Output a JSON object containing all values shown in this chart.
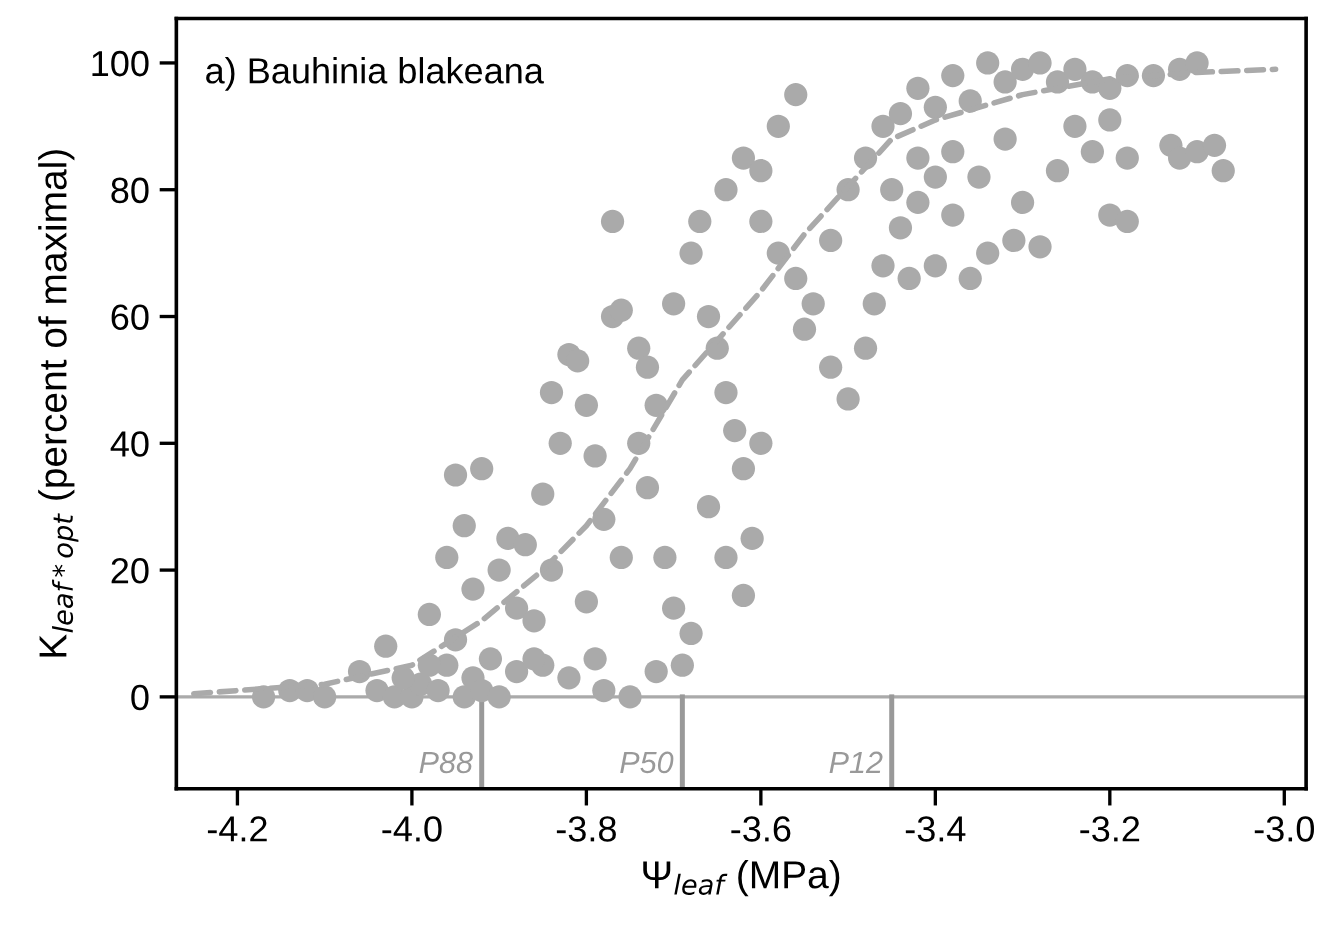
{
  "chart_data": {
    "type": "scatter",
    "title": "a) Bauhinia blakeana",
    "xlabel": "Ψ$_{leaf}$ (MPa)",
    "ylabel": "K$_{leaf*opt}$ (percent of maximal)",
    "xlim": [
      -4.27,
      -2.975
    ],
    "ylim": [
      -14.5,
      107
    ],
    "xticks": [
      -4.2,
      {
        "value": -4.0,
        "label": "-4.0"
      },
      -3.8,
      -3.6,
      -3.4,
      -3.2,
      {
        "value": -3.0,
        "label": "-3.0"
      }
    ],
    "yticks": [
      0,
      20,
      40,
      60,
      80,
      100
    ],
    "grid": false,
    "legend": false,
    "marker": "circle",
    "ref_lines": [
      {
        "axis": "y",
        "value": 0,
        "color": "#aaaaaa"
      },
      {
        "axis": "x",
        "value": -3.92,
        "label": "P88",
        "color": "#999999"
      },
      {
        "axis": "x",
        "value": -3.69,
        "label": "P50",
        "color": "#999999"
      },
      {
        "axis": "x",
        "value": -3.45,
        "label": "P12",
        "color": "#999999"
      }
    ],
    "series": [
      {
        "color": "#aaaaaa",
        "x": [
          -4.17,
          -4.14,
          -4.12,
          -4.1,
          -4.06,
          -4.04,
          -4.03,
          -4.02,
          -4.0,
          -3.99,
          -3.98,
          -3.97,
          -3.96,
          -3.95,
          -3.94,
          -3.93,
          -3.92,
          -3.91,
          -3.9,
          -3.98,
          -4.01,
          -3.96,
          -3.95,
          -3.94,
          -3.92,
          -3.93,
          -3.9,
          -3.89,
          -3.88,
          -3.87,
          -3.86,
          -3.85,
          -3.84,
          -3.83,
          -3.82,
          -3.81,
          -3.8,
          -3.79,
          -3.78,
          -3.77,
          -3.77,
          -3.76,
          -3.79,
          -3.85,
          -3.88,
          -3.82,
          -3.78,
          -3.75,
          -3.8,
          -3.84,
          -3.86,
          -3.76,
          -3.74,
          -3.73,
          -3.72,
          -3.74,
          -3.73,
          -3.71,
          -3.7,
          -3.69,
          -3.72,
          -3.7,
          -3.68,
          -3.67,
          -3.66,
          -3.65,
          -3.64,
          -3.63,
          -3.62,
          -3.66,
          -3.64,
          -3.62,
          -3.68,
          -3.6,
          -3.61,
          -3.64,
          -3.62,
          -3.6,
          -3.58,
          -3.56,
          -3.6,
          -3.58,
          -3.56,
          -3.54,
          -3.55,
          -3.52,
          -3.5,
          -3.48,
          -3.46,
          -3.52,
          -3.5,
          -3.48,
          -3.47,
          -3.46,
          -3.44,
          -3.42,
          -3.4,
          -3.43,
          -3.4,
          -3.44,
          -3.42,
          -3.4,
          -3.38,
          -3.36,
          -3.34,
          -3.32,
          -3.3,
          -3.28,
          -3.26,
          -3.24,
          -3.22,
          -3.2,
          -3.18,
          -3.15,
          -3.12,
          -3.1,
          -3.38,
          -3.35,
          -3.32,
          -3.3,
          -3.28,
          -3.31,
          -3.26,
          -3.24,
          -3.22,
          -3.2,
          -3.18,
          -3.2,
          -3.18,
          -3.13,
          -3.12,
          -3.1,
          -3.08,
          -3.07,
          -3.36,
          -3.34,
          -3.38,
          -3.42,
          -3.45
        ],
        "values": [
          0,
          1,
          1,
          0,
          4,
          1,
          8,
          0,
          0,
          2,
          13,
          1,
          5,
          9,
          0,
          3,
          1,
          6,
          0,
          5,
          3,
          22,
          35,
          27,
          36,
          17,
          20,
          25,
          14,
          24,
          12,
          32,
          48,
          40,
          54,
          53,
          46,
          38,
          28,
          75,
          60,
          22,
          6,
          5,
          4,
          3,
          1,
          0,
          15,
          20,
          6,
          61,
          55,
          52,
          46,
          40,
          33,
          22,
          14,
          5,
          4,
          62,
          70,
          75,
          60,
          55,
          48,
          42,
          36,
          30,
          22,
          16,
          10,
          40,
          25,
          80,
          85,
          83,
          90,
          95,
          75,
          70,
          66,
          62,
          58,
          72,
          80,
          85,
          90,
          52,
          47,
          55,
          62,
          68,
          74,
          78,
          82,
          66,
          68,
          92,
          96,
          93,
          98,
          94,
          100,
          97,
          99,
          100,
          97,
          99,
          97,
          96,
          98,
          98,
          99,
          100,
          86,
          82,
          88,
          78,
          71,
          72,
          83,
          90,
          86,
          91,
          85,
          76,
          75,
          87,
          85,
          86,
          87,
          83,
          66,
          70,
          76,
          85,
          80
        ]
      },
      {
        "type": "line",
        "color": "#aaaaaa",
        "line_style": "dashed",
        "marker": "none",
        "x": [
          -4.25,
          -4.2,
          -4.1,
          -4.0,
          -3.92,
          -3.85,
          -3.8,
          -3.75,
          -3.69,
          -3.6,
          -3.55,
          -3.45,
          -3.4,
          -3.3,
          -3.2,
          -3.1,
          -3.01
        ],
        "values": [
          0.5,
          1,
          2,
          5,
          12,
          20,
          27,
          36,
          50,
          64,
          73,
          88,
          91,
          95,
          97.5,
          98.5,
          99
        ]
      }
    ]
  }
}
